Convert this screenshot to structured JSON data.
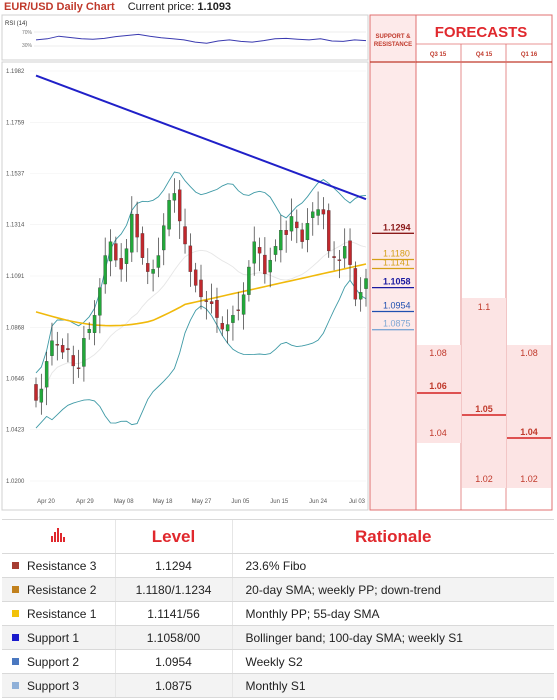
{
  "header": {
    "title": "EUR/USD Daily Chart",
    "price_label": "Current price:",
    "price_value": "1.1093"
  },
  "rsi": {
    "label": "RSI (14)",
    "ticks": [
      "70%",
      "30%"
    ]
  },
  "forecasts": {
    "title": "FORECASTS",
    "sr_label_1": "SUPPORT &",
    "sr_label_2": "RESISTANCE",
    "quarters": [
      "Q3 15",
      "Q4 15",
      "Q1 16"
    ],
    "q3": {
      "high": "1.08",
      "mid": "1.06",
      "low": "1.04"
    },
    "q4": {
      "high": "1.1",
      "mid": "1.05",
      "low": "1.02"
    },
    "q1": {
      "high": "1.08",
      "mid": "1.04",
      "low": "1.02"
    }
  },
  "chart_data": {
    "type": "candlestick",
    "y_ticks": [
      "1.1982",
      "1.1759",
      "1.1537",
      "1.1314",
      "1.1091",
      "1.0868",
      "1.0646",
      "1.0423",
      "1.0200"
    ],
    "ylim": [
      1.02,
      1.1982
    ],
    "x_ticks": [
      "Apr 20",
      "Apr 29",
      "May 08",
      "May 18",
      "May 27",
      "Jun 05",
      "Jun 15",
      "Jun 24",
      "Jul 03"
    ],
    "levels": [
      {
        "name": "Resistance 3",
        "value": "1.1294",
        "color": "#8b1a1a"
      },
      {
        "name": "Resistance 2",
        "value": "1.1180",
        "color": "#d4a017"
      },
      {
        "name": "Resistance 1",
        "value": "1.1141",
        "color": "#d4a017"
      },
      {
        "name": "Support 1",
        "value": "1.1058",
        "color": "#1a1aa0"
      },
      {
        "name": "Support 2",
        "value": "1.0954",
        "color": "#2050b0"
      },
      {
        "name": "Support 3",
        "value": "1.0875",
        "color": "#7fa7d4"
      }
    ],
    "closes": [
      1.055,
      1.06,
      1.072,
      1.081,
      1.079,
      1.076,
      1.077,
      1.07,
      1.069,
      1.082,
      1.086,
      1.092,
      1.104,
      1.118,
      1.124,
      1.116,
      1.112,
      1.121,
      1.136,
      1.126,
      1.117,
      1.111,
      1.112,
      1.118,
      1.131,
      1.142,
      1.145,
      1.133,
      1.123,
      1.111,
      1.105,
      1.1,
      1.098,
      1.097,
      1.091,
      1.086,
      1.088,
      1.092,
      1.094,
      1.101,
      1.113,
      1.124,
      1.119,
      1.11,
      1.116,
      1.122,
      1.129,
      1.127,
      1.135,
      1.13,
      1.124,
      1.132,
      1.137,
      1.138,
      1.136,
      1.12,
      1.117,
      1.116,
      1.122,
      1.114,
      1.099,
      1.102,
      1.108
    ]
  },
  "table": {
    "headers": {
      "level": "Level",
      "rationale": "Rationale"
    },
    "rows": [
      {
        "name": "Resistance 3",
        "level": "1.1294",
        "rationale": "23.6% Fibo",
        "color": "#a63d32"
      },
      {
        "name": "Resistance 2",
        "level": "1.1180/1.1234",
        "rationale": "20-day SMA; weekly PP; down-trend",
        "color": "#c1801c"
      },
      {
        "name": "Resistance 1",
        "level": "1.1141/56",
        "rationale": "Monthly PP; 55-day SMA",
        "color": "#f2c20a"
      },
      {
        "name": "Support 1",
        "level": "1.1058/00",
        "rationale": "Bollinger band; 100-day SMA; weekly S1",
        "color": "#1a1acc"
      },
      {
        "name": "Support 2",
        "level": "1.0954",
        "rationale": "Weekly S2",
        "color": "#4a78c0"
      },
      {
        "name": "Support 3",
        "level": "1.0875",
        "rationale": "Monthly S1",
        "color": "#8fb0d8"
      }
    ]
  }
}
